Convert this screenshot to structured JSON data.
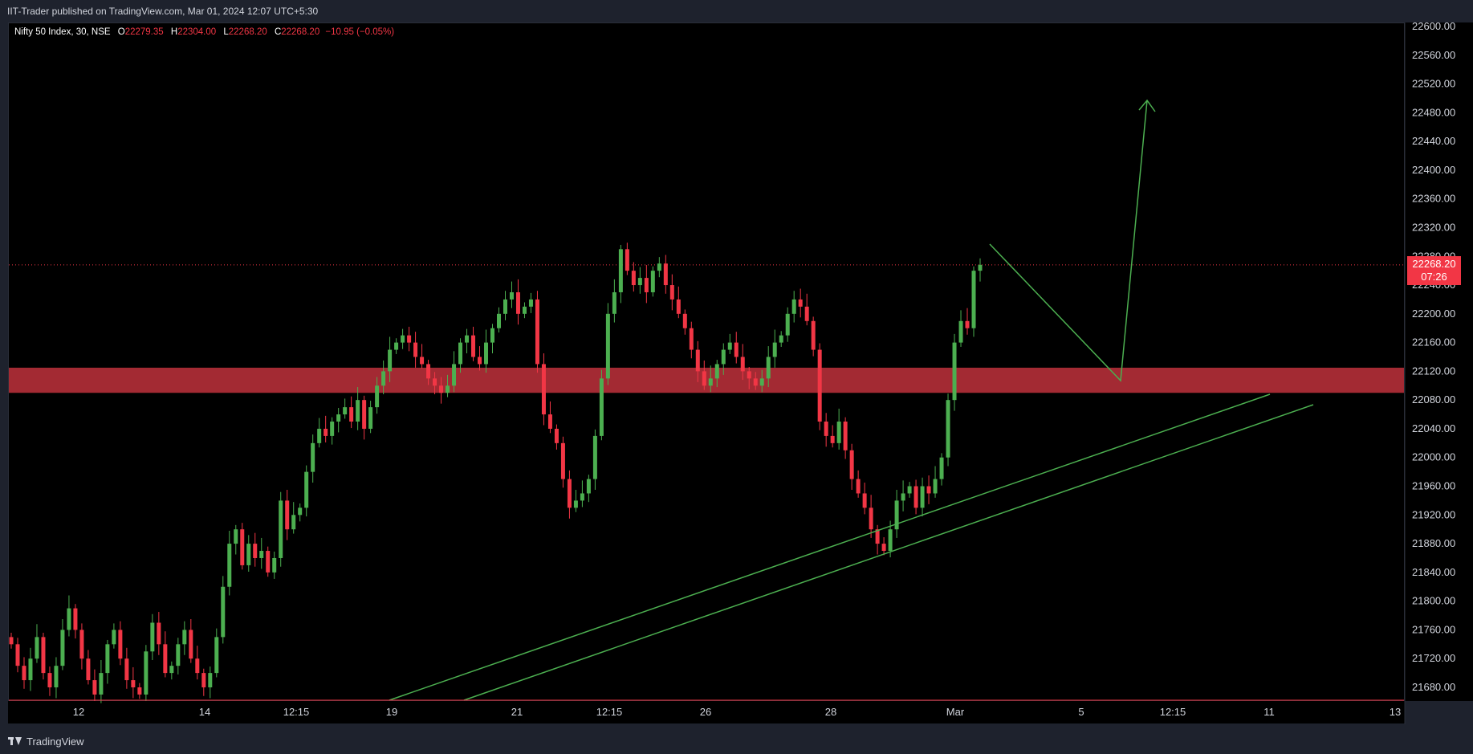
{
  "header": {
    "publisher_text": "IIT-Trader published on TradingView.com, Mar 01, 2024 12:07 UTC+5:30"
  },
  "legend": {
    "symbol": "Nifty 50 Index, 30, NSE",
    "open_label": "O",
    "open": "22279.35",
    "high_label": "H",
    "high": "22304.00",
    "low_label": "L",
    "low": "22268.20",
    "close_label": "C",
    "close": "22268.20",
    "change": "−10.95 (−0.05%)"
  },
  "price_badge": {
    "price": "22268.20",
    "countdown": "07:26"
  },
  "footer": {
    "brand": "TradingView"
  },
  "colors": {
    "up": "#4caf50",
    "down": "#f23645",
    "zone": "#a32a33",
    "drawing": "#4caf50",
    "background": "#000000"
  },
  "chart_data": {
    "type": "candlestick",
    "title": "",
    "y_axis": {
      "min": 21660,
      "max": 22620,
      "ticks": [
        "22600.00",
        "22560.00",
        "22520.00",
        "22480.00",
        "22440.00",
        "22400.00",
        "22360.00",
        "22320.00",
        "22280.00",
        "22240.00",
        "22200.00",
        "22160.00",
        "22120.00",
        "22080.00",
        "22040.00",
        "22000.00",
        "21960.00",
        "21920.00",
        "21880.00",
        "21840.00",
        "21800.00",
        "21760.00",
        "21720.00",
        "21680.00"
      ]
    },
    "x_axis": {
      "labels": [
        "12",
        "14",
        "12:15",
        "19",
        "21",
        "12:15",
        "26",
        "28",
        "Mar",
        "5",
        "12:15",
        "11",
        "13"
      ]
    },
    "last_price": 22268.2,
    "zone": {
      "from": 22090,
      "to": 22125
    },
    "closes": [
      21740,
      21710,
      21690,
      21720,
      21750,
      21700,
      21680,
      21710,
      21760,
      21790,
      21760,
      21720,
      21690,
      21670,
      21700,
      21740,
      21760,
      21720,
      21690,
      21680,
      21670,
      21730,
      21770,
      21740,
      21700,
      21710,
      21740,
      21760,
      21720,
      21700,
      21680,
      21700,
      21750,
      21820,
      21880,
      21900,
      21850,
      21880,
      21860,
      21870,
      21840,
      21860,
      21940,
      21900,
      21920,
      21930,
      21980,
      22020,
      22040,
      22030,
      22050,
      22060,
      22070,
      22050,
      22080,
      22040,
      22070,
      22100,
      22120,
      22150,
      22160,
      22170,
      22160,
      22140,
      22130,
      22110,
      22100,
      22090,
      22100,
      22130,
      22160,
      22170,
      22140,
      22130,
      22160,
      22180,
      22200,
      22220,
      22230,
      22200,
      22210,
      22220,
      22130,
      22060,
      22040,
      22020,
      21970,
      21930,
      21940,
      21950,
      21970,
      22030,
      22110,
      22200,
      22230,
      22290,
      22260,
      22240,
      22250,
      22230,
      22260,
      22270,
      22240,
      22220,
      22200,
      22180,
      22150,
      22120,
      22100,
      22110,
      22130,
      22150,
      22160,
      22140,
      22120,
      22110,
      22100,
      22110,
      22140,
      22160,
      22170,
      22200,
      22220,
      22210,
      22190,
      22150,
      22050,
      22030,
      22020,
      22050,
      22010,
      21970,
      21950,
      21930,
      21900,
      21880,
      21870,
      21900,
      21940,
      21950,
      21960,
      21930,
      21960,
      21950,
      21970,
      22000,
      22080,
      22160,
      22190,
      22180,
      22260,
      22268.2
    ],
    "up_trendline_1": {
      "from": [
        "19",
        21665
      ],
      "to": [
        "11",
        22090
      ]
    },
    "up_trendline_2": {
      "from": [
        "19+",
        21665
      ],
      "to": [
        "11+",
        22080
      ]
    },
    "projection": [
      22300,
      22110,
      22490
    ]
  }
}
